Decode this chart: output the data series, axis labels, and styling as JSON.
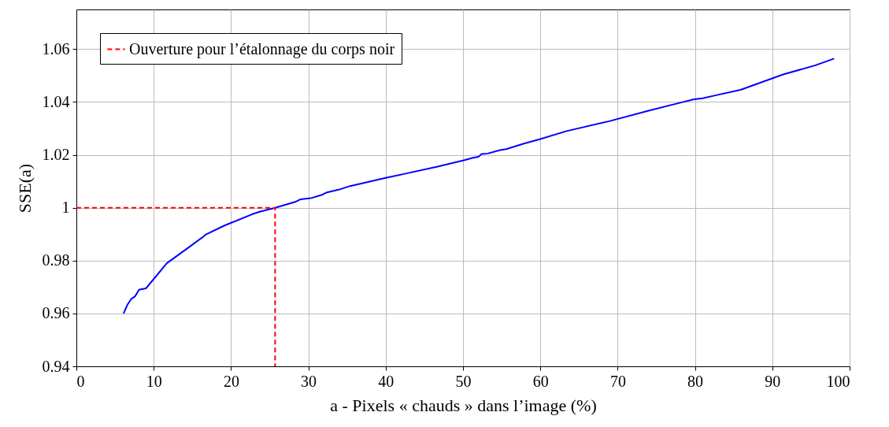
{
  "chart_data": {
    "type": "line",
    "xlabel": "a - Pixels « chauds » dans l’image (%)",
    "ylabel": "SSE(a)",
    "xlim": [
      0,
      100
    ],
    "ylim": [
      0.94,
      1.075
    ],
    "xticks": [
      0,
      10,
      20,
      30,
      40,
      50,
      60,
      70,
      80,
      90,
      100
    ],
    "yticks": [
      0.94,
      0.96,
      0.98,
      1,
      1.02,
      1.04,
      1.06
    ],
    "grid": true,
    "legend": "top left",
    "series": [
      {
        "color": "#0000ff",
        "x": [
          6.1,
          6.6,
          7.1,
          7.6,
          8.1,
          9.0,
          11.7,
          14.3,
          16.4,
          16.7,
          19.1,
          22.7,
          23.7,
          25.7,
          28.3,
          29.0,
          30.3,
          31.7,
          32.4,
          33.9,
          35.4,
          40.0,
          42.1,
          46.6,
          50.2,
          51.2,
          52.0,
          52.4,
          53.2,
          54.8,
          55.6,
          57.8,
          60.0,
          63.4,
          69.0,
          74.1,
          78.2,
          79.9,
          81.0,
          82.5,
          85.9,
          91.4,
          95.5,
          98.0
        ],
        "values": [
          0.96,
          0.9633,
          0.9655,
          0.9665,
          0.969,
          0.9695,
          0.979,
          0.9845,
          0.989,
          0.9898,
          0.9932,
          0.9975,
          0.9985,
          1.0,
          1.0022,
          1.0032,
          1.0036,
          1.0048,
          1.0058,
          1.0068,
          1.0082,
          1.0113,
          1.0126,
          1.0155,
          1.018,
          1.0188,
          1.0193,
          1.0203,
          1.0205,
          1.0218,
          1.0222,
          1.0242,
          1.026,
          1.029,
          1.0328,
          1.0368,
          1.0398,
          1.041,
          1.0414,
          1.0424,
          1.0446,
          1.0504,
          1.0538,
          1.0564
        ]
      },
      {
        "name": "Ouverture pour l’étalonnage du corps noir",
        "color": "#ff0000",
        "line_style": "dashed",
        "x": [
          0,
          25.7,
          25.7
        ],
        "values": [
          1,
          1,
          0.94
        ]
      }
    ]
  }
}
